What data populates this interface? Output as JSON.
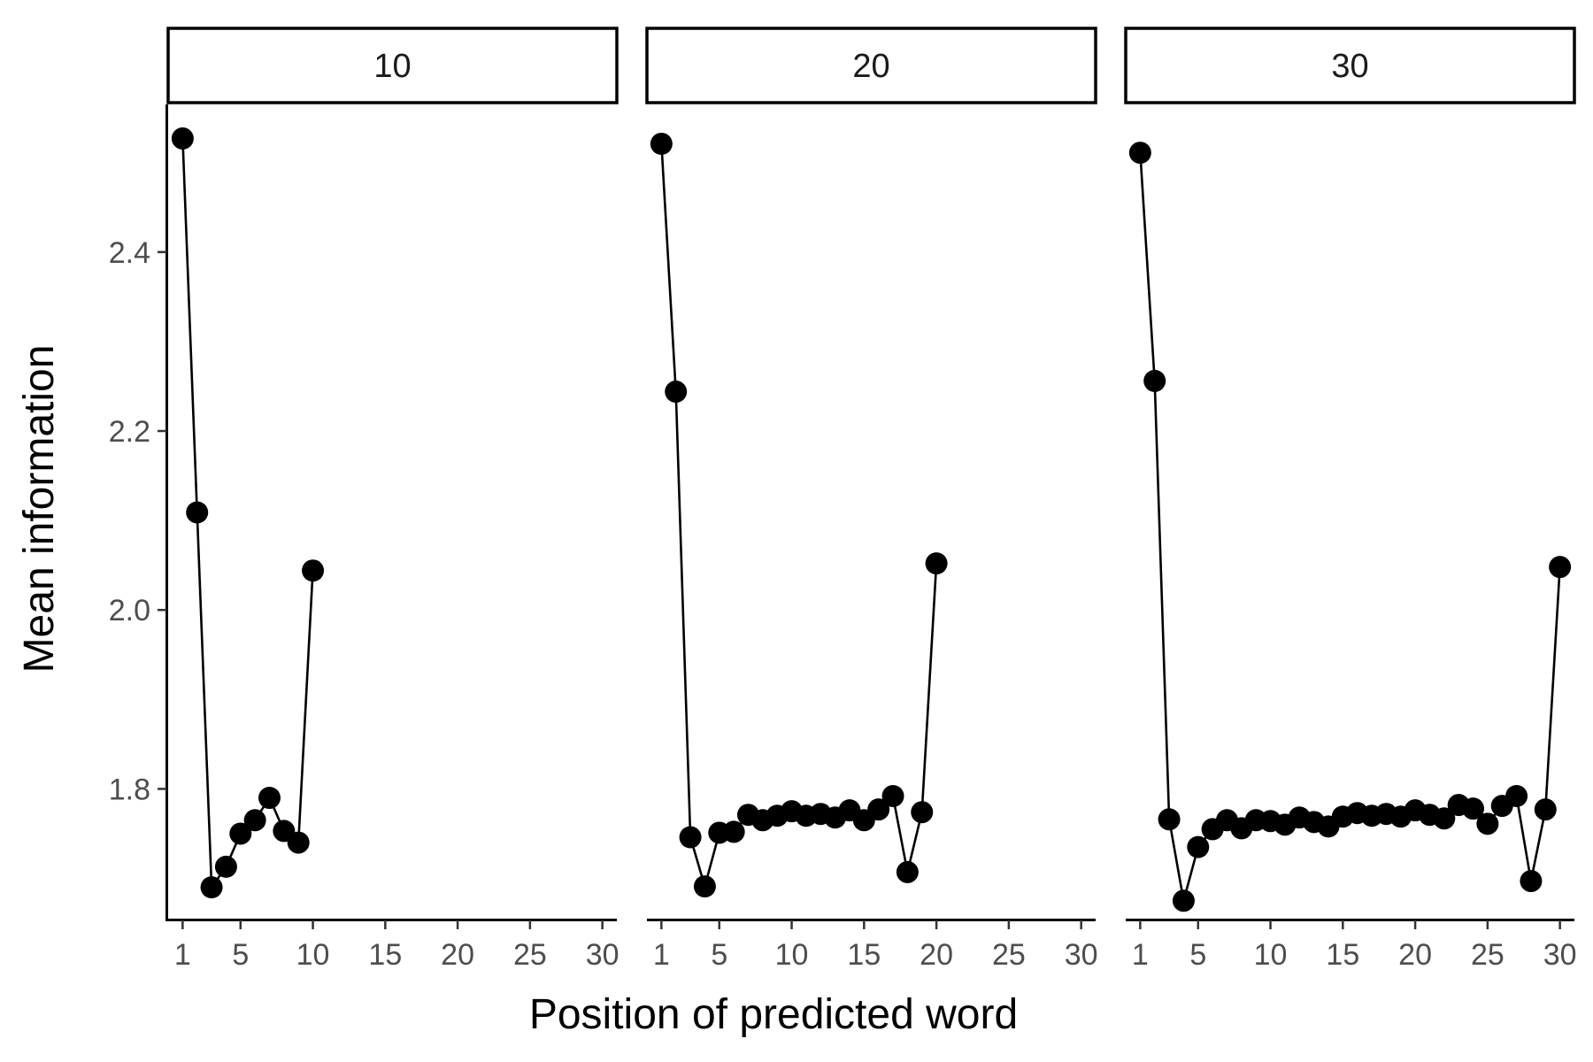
{
  "chart_data": {
    "type": "line",
    "facet_by": "sequence length",
    "xlabel": "Position of predicted word",
    "ylabel": "Mean information",
    "xlim": [
      0,
      31
    ],
    "ylim": [
      1.655,
      2.565
    ],
    "x_ticks": [
      1,
      5,
      10,
      15,
      20,
      25,
      30
    ],
    "y_ticks": [
      1.8,
      2.0,
      2.2,
      2.4
    ],
    "y_tick_labels": [
      "1.8",
      "2.0",
      "2.2",
      "2.4"
    ],
    "markers": true,
    "line_color": "#000000",
    "point_color": "#000000",
    "panels": [
      {
        "strip_label": "10",
        "x": [
          1,
          2,
          3,
          4,
          5,
          6,
          7,
          8,
          9,
          10
        ],
        "y": [
          2.527,
          2.109,
          1.69,
          1.713,
          1.75,
          1.765,
          1.79,
          1.753,
          1.74,
          2.044
        ]
      },
      {
        "strip_label": "20",
        "x": [
          1,
          2,
          3,
          4,
          5,
          6,
          7,
          8,
          9,
          10,
          11,
          12,
          13,
          14,
          15,
          16,
          17,
          18,
          19,
          20
        ],
        "y": [
          2.521,
          2.244,
          1.746,
          1.691,
          1.751,
          1.752,
          1.771,
          1.765,
          1.77,
          1.775,
          1.77,
          1.772,
          1.768,
          1.776,
          1.765,
          1.777,
          1.792,
          1.707,
          1.774,
          2.052
        ]
      },
      {
        "strip_label": "30",
        "x": [
          1,
          2,
          3,
          4,
          5,
          6,
          7,
          8,
          9,
          10,
          11,
          12,
          13,
          14,
          15,
          16,
          17,
          18,
          19,
          20,
          21,
          22,
          23,
          24,
          25,
          26,
          27,
          28,
          29,
          30
        ],
        "y": [
          2.511,
          2.256,
          1.766,
          1.675,
          1.735,
          1.755,
          1.765,
          1.756,
          1.765,
          1.764,
          1.76,
          1.768,
          1.763,
          1.758,
          1.769,
          1.773,
          1.77,
          1.772,
          1.769,
          1.776,
          1.771,
          1.767,
          1.782,
          1.778,
          1.761,
          1.781,
          1.792,
          1.697,
          1.777,
          2.048
        ]
      }
    ]
  }
}
